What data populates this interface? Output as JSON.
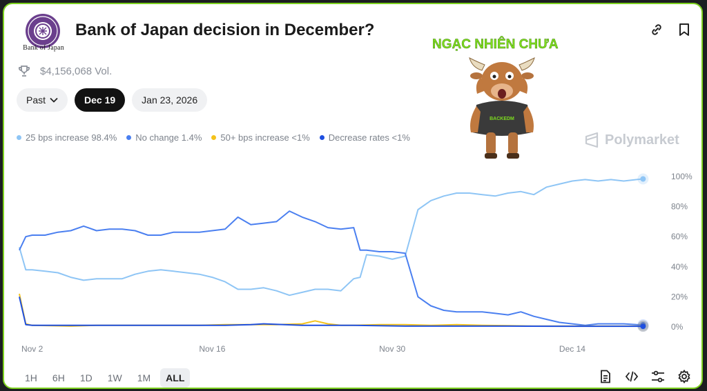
{
  "header": {
    "logo_caption": "Bank of Japan",
    "title": "Bank of Japan decision in December?",
    "volume": "$4,156,068 Vol."
  },
  "pills": [
    {
      "label": "Past",
      "icon": "chevron-down-icon"
    },
    {
      "label": "Dec 19",
      "active": true
    },
    {
      "label": "Jan 23, 2026"
    }
  ],
  "legend": [
    {
      "label": "25 bps increase 98.4%",
      "color": "#8ec5f5"
    },
    {
      "label": "No change 1.4%",
      "color": "#4a7ff0"
    },
    {
      "label": "50+ bps increase <1%",
      "color": "#f4c21b"
    },
    {
      "label": "Decrease rates <1%",
      "color": "#1e4fe0"
    }
  ],
  "watermark": "Polymarket",
  "overlay": {
    "text": "NGẠC NHIÊN CHƯA",
    "shirt_text": "BACKEDM",
    "text_color": "#7ddc1f"
  },
  "ranges": [
    {
      "label": "1H"
    },
    {
      "label": "6H"
    },
    {
      "label": "1D"
    },
    {
      "label": "1W"
    },
    {
      "label": "1M"
    },
    {
      "label": "ALL",
      "active": true
    }
  ],
  "bottom_icons": [
    "document-icon",
    "code-icon",
    "sliders-icon",
    "gear-icon"
  ],
  "chart_data": {
    "type": "line",
    "x_ticks": [
      "Nov 2",
      "Nov 16",
      "Nov 30",
      "Dec 14"
    ],
    "y_ticks": [
      "100%",
      "80%",
      "60%",
      "40%",
      "20%",
      "0%"
    ],
    "ylim": [
      0,
      100
    ],
    "xlim": [
      0,
      49.5
    ],
    "tick_positions": [
      1,
      15,
      29,
      43
    ],
    "grid": false,
    "series": [
      {
        "name": "25 bps increase",
        "color": "#8ec5f5",
        "x": [
          0,
          0.5,
          1,
          2,
          3,
          4,
          5,
          6,
          7,
          8,
          9,
          10,
          11,
          12,
          13,
          14,
          15,
          16,
          17,
          18,
          19,
          20,
          21,
          22,
          23,
          24,
          25,
          26,
          26.5,
          27,
          28,
          29,
          30,
          31,
          32,
          33,
          34,
          35,
          36,
          37,
          38,
          39,
          40,
          41,
          42,
          43,
          44,
          45,
          46,
          47,
          48,
          48.5
        ],
        "y": [
          53,
          38,
          38,
          37,
          36,
          33,
          31,
          32,
          32,
          32,
          35,
          37,
          38,
          37,
          36,
          35,
          33,
          30,
          25,
          25,
          26,
          24,
          21,
          23,
          25,
          25,
          24,
          32,
          33,
          48,
          47,
          45,
          47,
          78,
          84,
          87,
          89,
          89,
          88,
          87,
          89,
          90,
          88,
          93,
          95,
          97,
          98,
          97,
          98,
          97,
          98,
          98.4
        ]
      },
      {
        "name": "No change",
        "color": "#4a7ff0",
        "x": [
          0,
          0.5,
          1,
          2,
          3,
          4,
          5,
          6,
          7,
          8,
          9,
          10,
          11,
          12,
          13,
          14,
          15,
          16,
          17,
          18,
          19,
          20,
          21,
          22,
          23,
          24,
          25,
          26,
          26.5,
          27,
          28,
          29,
          30,
          31,
          32,
          33,
          34,
          35,
          36,
          37,
          38,
          39,
          40,
          41,
          42,
          43,
          44,
          45,
          46,
          47,
          48,
          48.5
        ],
        "y": [
          51,
          60,
          61,
          61,
          63,
          64,
          67,
          64,
          65,
          65,
          64,
          61,
          61,
          63,
          63,
          63,
          64,
          65,
          73,
          68,
          69,
          70,
          77,
          73,
          70,
          66,
          65,
          66,
          51,
          51,
          50,
          50,
          49,
          20,
          14,
          11,
          10,
          10,
          10,
          9,
          8,
          10,
          7,
          5,
          3,
          2,
          1,
          2,
          2,
          2,
          1.5,
          1.4
        ]
      },
      {
        "name": "50+ bps increase",
        "color": "#f4c21b",
        "x": [
          0,
          0.5,
          1,
          4,
          6,
          10,
          14,
          16,
          20,
          22,
          23,
          24,
          25,
          26,
          28,
          30,
          32,
          34,
          36,
          38,
          40,
          44,
          48,
          48.5
        ],
        "y": [
          22,
          2,
          1,
          0.5,
          1,
          1,
          1,
          1.5,
          1.5,
          2,
          4,
          2,
          1,
          1,
          1.5,
          1.5,
          1,
          1.5,
          1,
          0.8,
          0.5,
          0.5,
          0.5,
          0.5
        ]
      },
      {
        "name": "Decrease rates",
        "color": "#1e4fe0",
        "x": [
          0,
          0.5,
          1,
          4,
          8,
          12,
          16,
          18,
          19,
          22,
          26,
          30,
          34,
          38,
          42,
          46,
          48,
          48.5
        ],
        "y": [
          20,
          1.5,
          1,
          1,
          1,
          1,
          1,
          1.5,
          2,
          1,
          1,
          0.5,
          0.5,
          0.5,
          0.4,
          0.4,
          0.4,
          0.4
        ]
      }
    ]
  }
}
